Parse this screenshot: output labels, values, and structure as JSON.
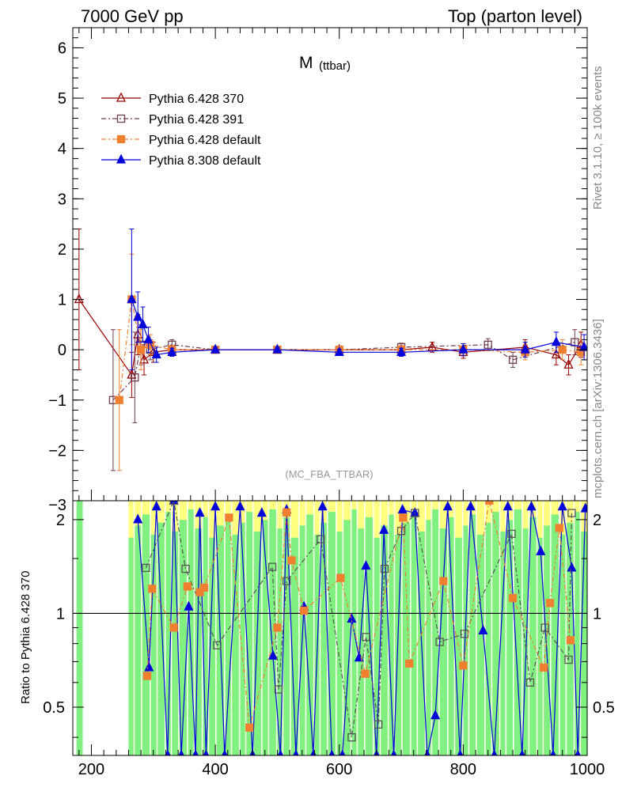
{
  "header": {
    "left": "7000 GeV pp",
    "right": "Top (parton level)"
  },
  "side_labels": {
    "rivet": "Rivet 3.1.10, ≥ 100k events",
    "mcplots": "mcplots.cern.ch [arXiv:1306.3436]"
  },
  "chart_data": [
    {
      "type": "scatter",
      "panel": "main",
      "title": "M (ttbar)",
      "title_main": "M",
      "title_sub": "(ttbar)",
      "annotation": "(MC_FBA_TTBAR)",
      "xlim": [
        170,
        1000
      ],
      "ylim": [
        -3,
        6.4
      ],
      "yticks": [
        -2,
        -1,
        0,
        1,
        2,
        3,
        4,
        5,
        6
      ],
      "ytick_labels": [
        "−2",
        "−1",
        "0",
        "1",
        "2",
        "3",
        "4",
        "5",
        "6"
      ],
      "legend_position": "top-left",
      "series": [
        {
          "name": "Pythia 6.428 370",
          "color": "#990000",
          "marker": "open-triangle",
          "line": "solid",
          "points": [
            [
              180,
              1.0,
              1.4
            ],
            [
              265,
              -0.5,
              0.45
            ],
            [
              275,
              0.3,
              0.4
            ],
            [
              285,
              -0.2,
              0.3
            ],
            [
              300,
              -0.05,
              0.2
            ],
            [
              330,
              0.0,
              0.08
            ],
            [
              400,
              0.0,
              0.05
            ],
            [
              500,
              0.0,
              0.05
            ],
            [
              600,
              0.0,
              0.06
            ],
            [
              700,
              0.0,
              0.08
            ],
            [
              750,
              0.05,
              0.1
            ],
            [
              800,
              -0.05,
              0.12
            ],
            [
              900,
              0.05,
              0.15
            ],
            [
              950,
              -0.1,
              0.2
            ],
            [
              970,
              -0.3,
              0.2
            ],
            [
              990,
              0.1,
              0.25
            ]
          ]
        },
        {
          "name": "Pythia 6.428 391",
          "color": "#6e3b4f",
          "marker": "open-square",
          "line": "dashdot",
          "points": [
            [
              235,
              -1.0,
              1.4
            ],
            [
              270,
              -0.55,
              0.9
            ],
            [
              280,
              0.1,
              0.4
            ],
            [
              295,
              0.0,
              0.2
            ],
            [
              330,
              0.1,
              0.1
            ],
            [
              400,
              0.0,
              0.05
            ],
            [
              500,
              0.0,
              0.05
            ],
            [
              600,
              0.0,
              0.06
            ],
            [
              700,
              0.05,
              0.08
            ],
            [
              840,
              0.1,
              0.12
            ],
            [
              880,
              -0.2,
              0.15
            ],
            [
              980,
              0.15,
              0.25
            ]
          ]
        },
        {
          "name": "Pythia 6.428 default",
          "color": "#f08030",
          "marker": "filled-square",
          "line": "dashdot",
          "points": [
            [
              245,
              -1.0,
              1.4
            ],
            [
              265,
              1.0,
              0.9
            ],
            [
              280,
              0.0,
              0.4
            ],
            [
              295,
              0.1,
              0.2
            ],
            [
              330,
              0.0,
              0.08
            ],
            [
              400,
              0.0,
              0.05
            ],
            [
              500,
              0.0,
              0.05
            ],
            [
              600,
              0.0,
              0.06
            ],
            [
              700,
              0.0,
              0.08
            ],
            [
              800,
              0.0,
              0.12
            ],
            [
              900,
              -0.05,
              0.15
            ],
            [
              960,
              0.0,
              0.2
            ],
            [
              990,
              -0.05,
              0.25
            ]
          ]
        },
        {
          "name": "Pythia 8.308 default",
          "color": "#0000dd",
          "marker": "filled-triangle",
          "line": "solid",
          "points": [
            [
              265,
              1.0,
              1.4
            ],
            [
              275,
              0.65,
              0.5
            ],
            [
              283,
              0.5,
              0.35
            ],
            [
              292,
              0.2,
              0.25
            ],
            [
              305,
              -0.1,
              0.15
            ],
            [
              330,
              -0.05,
              0.08
            ],
            [
              400,
              0.0,
              0.05
            ],
            [
              500,
              0.0,
              0.05
            ],
            [
              600,
              -0.05,
              0.06
            ],
            [
              700,
              -0.05,
              0.08
            ],
            [
              800,
              0.0,
              0.12
            ],
            [
              900,
              0.0,
              0.15
            ],
            [
              950,
              0.15,
              0.2
            ],
            [
              995,
              0.05,
              0.25
            ]
          ]
        }
      ]
    },
    {
      "type": "line",
      "panel": "ratio",
      "ylabel": "Ratio to Pythia 6.428 370",
      "xlim": [
        170,
        1000
      ],
      "ylim": [
        0.35,
        2.3
      ],
      "xticks": [
        200,
        400,
        600,
        800,
        1000
      ],
      "xtick_labels": [
        "200",
        "400",
        "600",
        "800",
        "1000"
      ],
      "yticks": [
        0.5,
        1,
        2
      ],
      "ytick_labels": [
        "0.5",
        "1",
        "2"
      ],
      "reference_line": 1,
      "series": [
        {
          "name": "Pythia 8.308 default",
          "color": "#0000dd",
          "marker": "filled-triangle",
          "points": [
            [
              275,
              2.0
            ],
            [
              293,
              0.67
            ],
            [
              305,
              2.2
            ],
            [
              323,
              0.35
            ],
            [
              333,
              2.3
            ],
            [
              345,
              0.35
            ],
            [
              357,
              1.05
            ],
            [
              368,
              0.35
            ],
            [
              375,
              2.1
            ],
            [
              385,
              0.35
            ],
            [
              400,
              2.2
            ],
            [
              415,
              0.35
            ],
            [
              440,
              2.2
            ],
            [
              460,
              0.35
            ],
            [
              475,
              2.1
            ],
            [
              493,
              0.73
            ],
            [
              505,
              0.35
            ],
            [
              515,
              2.15
            ],
            [
              530,
              0.35
            ],
            [
              543,
              1.05
            ],
            [
              558,
              0.35
            ],
            [
              573,
              2.2
            ],
            [
              588,
              0.35
            ],
            [
              605,
              0.35
            ],
            [
              620,
              0.96
            ],
            [
              632,
              0.72
            ],
            [
              643,
              1.42
            ],
            [
              660,
              0.35
            ],
            [
              672,
              1.85
            ],
            [
              688,
              0.35
            ],
            [
              702,
              2.15
            ],
            [
              722,
              2.1
            ],
            [
              742,
              0.35
            ],
            [
              755,
              0.47
            ],
            [
              775,
              2.2
            ],
            [
              795,
              0.35
            ],
            [
              812,
              2.2
            ],
            [
              832,
              0.88
            ],
            [
              850,
              0.35
            ],
            [
              872,
              2.2
            ],
            [
              895,
              0.35
            ],
            [
              910,
              2.2
            ],
            [
              925,
              1.58
            ],
            [
              945,
              0.35
            ],
            [
              960,
              2.2
            ],
            [
              975,
              1.4
            ],
            [
              985,
              0.35
            ],
            [
              997,
              2.17
            ]
          ]
        },
        {
          "name": "Pythia 6.428 391",
          "color": "#555555",
          "marker": "open-square",
          "points": [
            [
              288,
              1.4
            ],
            [
              333,
              2.3
            ],
            [
              352,
              1.39
            ],
            [
              403,
              0.79
            ],
            [
              492,
              1.41
            ],
            [
              502,
              0.57
            ],
            [
              515,
              1.27
            ],
            [
              570,
              1.73
            ],
            [
              620,
              0.4
            ],
            [
              643,
              0.84
            ],
            [
              663,
              0.44
            ],
            [
              673,
              1.39
            ],
            [
              700,
              1.84
            ],
            [
              722,
              2.1
            ],
            [
              762,
              0.81
            ],
            [
              802,
              0.86
            ],
            [
              878,
              1.8
            ],
            [
              908,
              0.6
            ],
            [
              932,
              0.9
            ],
            [
              970,
              0.71
            ],
            [
              975,
              2.1
            ]
          ]
        },
        {
          "name": "Pythia 6.428 default",
          "color": "#f08030",
          "marker": "filled-square",
          "points": [
            [
              290,
              0.63
            ],
            [
              298,
              1.2
            ],
            [
              333,
              0.9
            ],
            [
              355,
              1.22
            ],
            [
              375,
              1.17
            ],
            [
              382,
              1.21
            ],
            [
              422,
              2.03
            ],
            [
              455,
              0.43
            ],
            [
              500,
              0.9
            ],
            [
              515,
              2.11
            ],
            [
              523,
              1.48
            ],
            [
              543,
              1.02
            ],
            [
              602,
              1.3
            ],
            [
              642,
              0.64
            ],
            [
              703,
              2.03
            ],
            [
              713,
              0.69
            ],
            [
              768,
              1.27
            ],
            [
              800,
              0.68
            ],
            [
              842,
              2.3
            ],
            [
              880,
              1.12
            ],
            [
              930,
              0.67
            ],
            [
              940,
              1.08
            ],
            [
              955,
              1.88
            ],
            [
              973,
              0.82
            ]
          ]
        }
      ]
    }
  ],
  "band_colors": {
    "outer": "#ffff80",
    "inner": "#80f080"
  }
}
